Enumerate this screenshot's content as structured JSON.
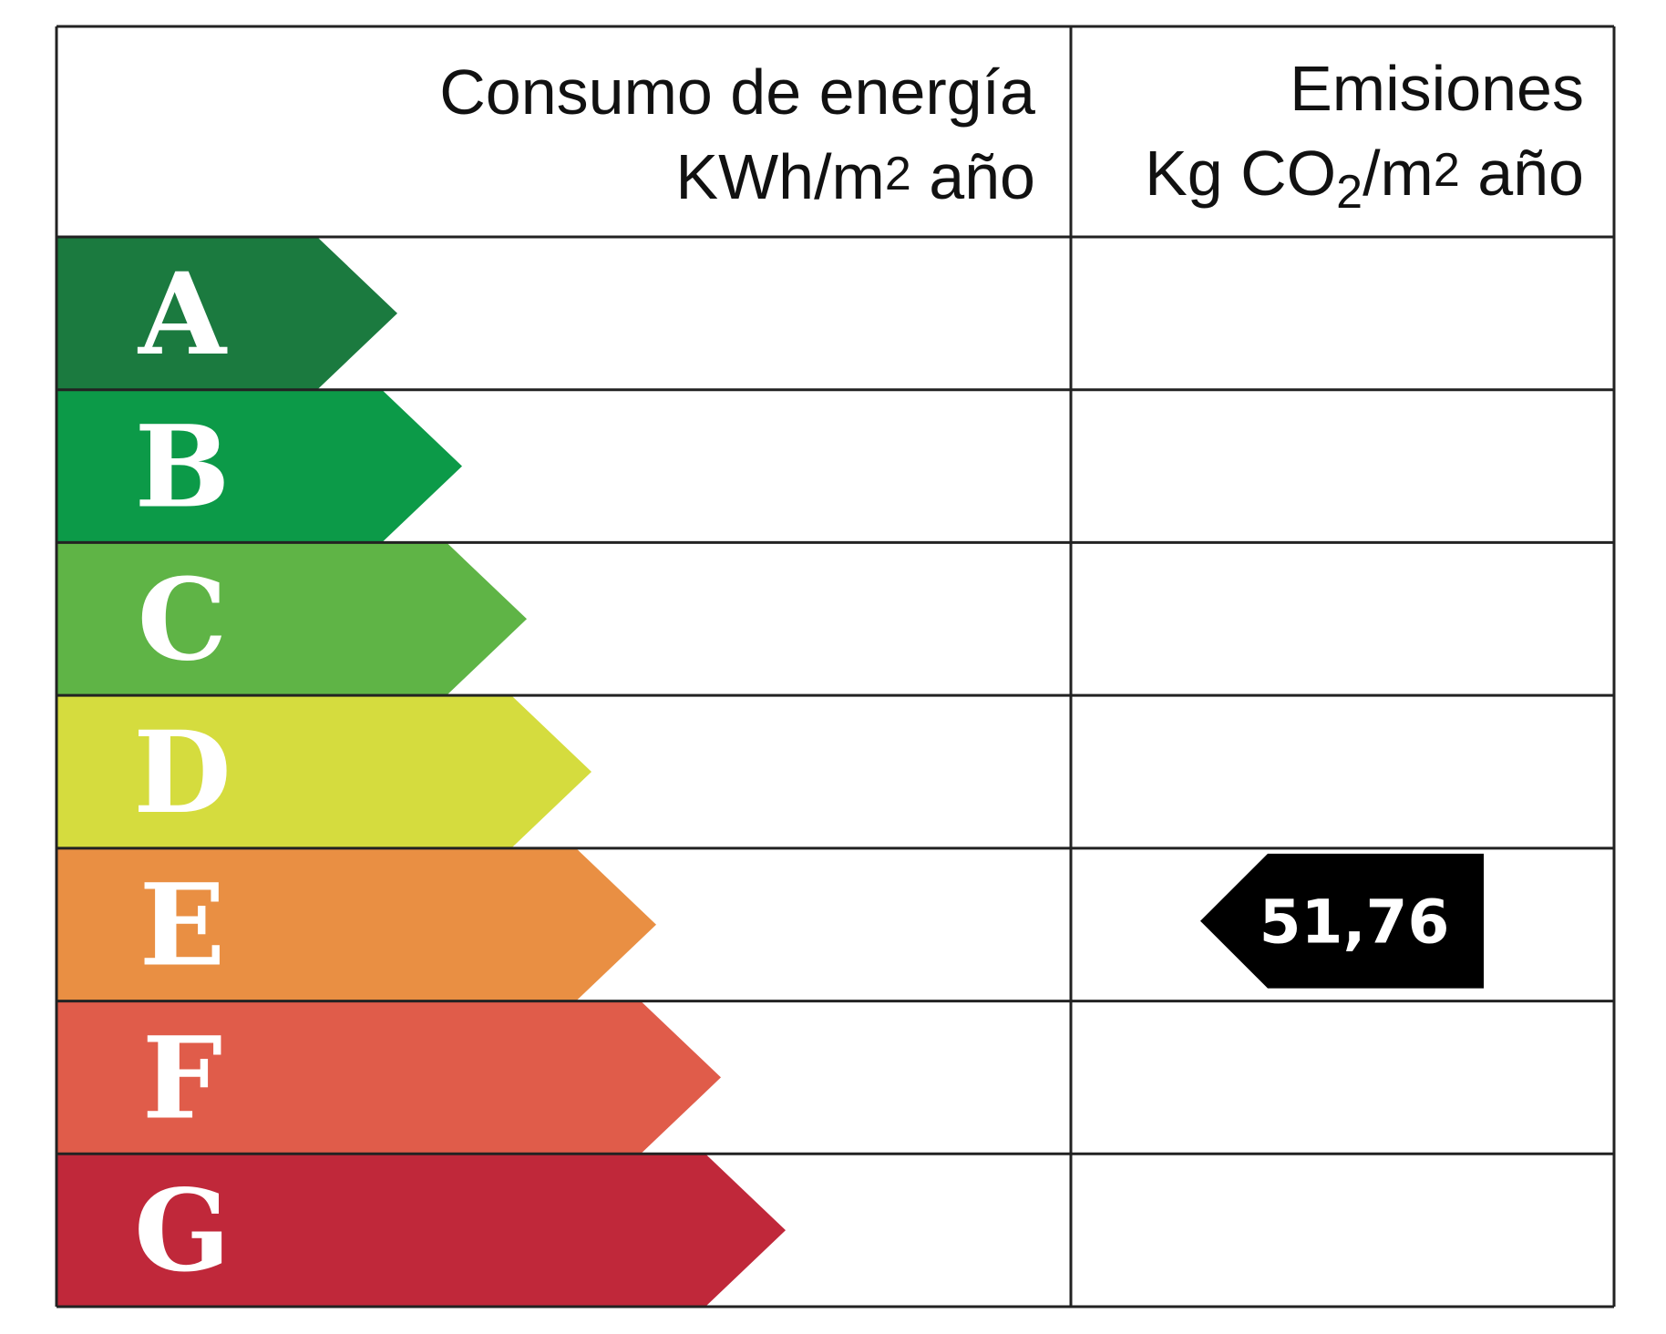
{
  "header": {
    "consumption": {
      "title": "Consumo de energía",
      "unit": [
        "KWh/m",
        "2",
        " año"
      ]
    },
    "emissions": {
      "title": "Emisiones",
      "unit": [
        "Kg CO",
        "2",
        "/m",
        "2",
        " año"
      ]
    }
  },
  "grades": [
    {
      "letter": "A",
      "color": "#1b7a3f"
    },
    {
      "letter": "B",
      "color": "#0c9a48"
    },
    {
      "letter": "C",
      "color": "#5fb446"
    },
    {
      "letter": "D",
      "color": "#d5dc3e"
    },
    {
      "letter": "E",
      "color": "#e98f43"
    },
    {
      "letter": "F",
      "color": "#e05c4a"
    },
    {
      "letter": "G",
      "color": "#c0283a"
    }
  ],
  "emissions_marker": {
    "grade": "E",
    "value": "51,76"
  }
}
